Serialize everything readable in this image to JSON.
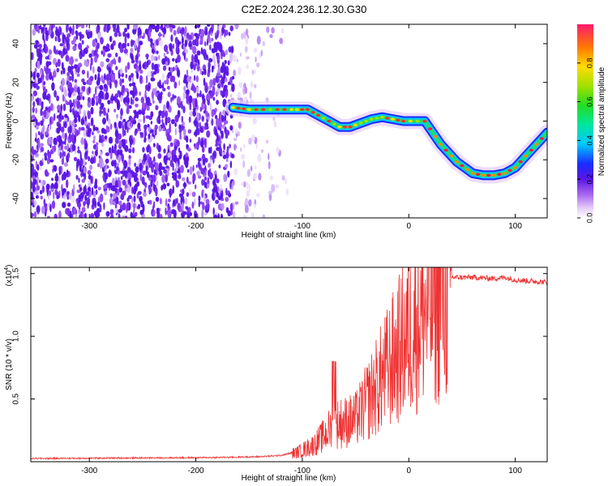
{
  "title": "C2E2.2024.236.12.30.G30",
  "chart_data": [
    {
      "type": "heatmap",
      "xlabel": "Height of straight line (km)",
      "ylabel": "Frequency (Hz)",
      "xlim": [
        -355,
        130
      ],
      "ylim": [
        -50,
        50
      ],
      "xticks": [
        -300,
        -200,
        -100,
        0,
        100
      ],
      "yticks": [
        -40,
        -20,
        0,
        20,
        40
      ],
      "colorbar": {
        "label": "Normalized spectral amplitude",
        "range": [
          0.0,
          1.0
        ],
        "ticks": [
          "0.0",
          "0.2",
          "0.4",
          "0.6",
          "0.8"
        ],
        "tick_values": [
          0.0,
          0.2,
          0.4,
          0.6,
          0.8
        ]
      },
      "noise_region": {
        "x_from": -355,
        "x_to": -110,
        "dense_to": -165
      },
      "ridge": {
        "x": [
          -165,
          -150,
          -130,
          -110,
          -95,
          -85,
          -75,
          -65,
          -55,
          -45,
          -35,
          -25,
          -15,
          -5,
          15,
          30,
          45,
          60,
          70,
          80,
          90,
          100,
          110,
          120,
          130
        ],
        "y": [
          7,
          6,
          6,
          6,
          6,
          3,
          0,
          -3,
          -3,
          -1,
          1,
          2,
          1,
          0,
          0,
          -12,
          -21,
          -27,
          -28,
          -28,
          -27,
          -24,
          -18,
          -12,
          -6
        ]
      }
    },
    {
      "type": "line",
      "xlabel": "Height of straight line (km)",
      "ylabel": "SNR (10 * v/v)",
      "yscale_label": "(x10",
      "yscale_exp": "4",
      "yscale_close": ")",
      "xlim": [
        -355,
        130
      ],
      "ylim": [
        0,
        15500
      ],
      "xticks": [
        -300,
        -200,
        -100,
        0,
        100
      ],
      "yticks": [
        0.5,
        1.0,
        1.5
      ],
      "ytick_labels": [
        "0.5",
        "1.0",
        "1.5"
      ],
      "color": "#ee3333",
      "series": [
        {
          "x": [
            -355,
            -300,
            -250,
            -200,
            -170,
            -140,
            -120,
            -105,
            -90,
            -80,
            -70,
            -60,
            -50,
            -40,
            -30,
            -20,
            -10,
            0,
            10,
            20,
            30,
            40,
            60,
            80,
            90,
            100,
            115,
            130
          ],
          "y": [
            250,
            280,
            300,
            320,
            350,
            400,
            500,
            800,
            1400,
            2200,
            3200,
            3400,
            3600,
            5000,
            6500,
            8000,
            9500,
            11000,
            12500,
            13500,
            14300,
            14700,
            14700,
            14600,
            14700,
            14500,
            14400,
            14300
          ]
        }
      ]
    }
  ]
}
